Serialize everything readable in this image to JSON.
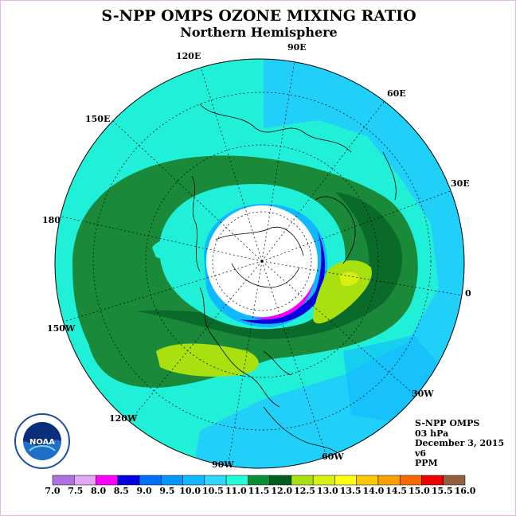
{
  "title": "S-NPP OMPS OZONE MIXING RATIO",
  "subtitle": "Northern Hemisphere",
  "longitudes": [
    {
      "label": "90E"
    },
    {
      "label": "60E"
    },
    {
      "label": "30E"
    },
    {
      "label": "0"
    },
    {
      "label": "30W"
    },
    {
      "label": "60W"
    },
    {
      "label": "90W"
    },
    {
      "label": "120W"
    },
    {
      "label": "150W"
    },
    {
      "label": "180"
    },
    {
      "label": "150E"
    },
    {
      "label": "120E"
    }
  ],
  "info": {
    "instrument": "S-NPP OMPS",
    "level": "03 hPa",
    "date": "December 3, 2015",
    "version": "v6",
    "units": "PPM"
  },
  "colorbar": {
    "ticks": [
      "7.0",
      "7.5",
      "8.0",
      "8.5",
      "9.0",
      "9.5",
      "10.0",
      "10.5",
      "11.0",
      "11.5",
      "12.0",
      "12.5",
      "13.0",
      "13.5",
      "14.0",
      "14.5",
      "15.0",
      "15.5",
      "16.0"
    ],
    "colors": [
      "#b070e0",
      "#e0a8f0",
      "#ff00ff",
      "#0000e0",
      "#0070ff",
      "#0098ff",
      "#10b8ff",
      "#30d8ff",
      "#20ffd8",
      "#088f38",
      "#005f1c",
      "#a8e010",
      "#d8f010",
      "#ffff10",
      "#f8c800",
      "#f8a000",
      "#f86800",
      "#f00000",
      "#906040"
    ]
  },
  "logo": {
    "text": "NOAA"
  },
  "colors": {
    "background_cyan": "#20f0d8",
    "light_blue": "#20d0f8",
    "medium_blue": "#10b8ff",
    "dark_green": "#1a8a3a",
    "darker_green": "#0a6a2a",
    "yellow_green": "#a8e010"
  }
}
